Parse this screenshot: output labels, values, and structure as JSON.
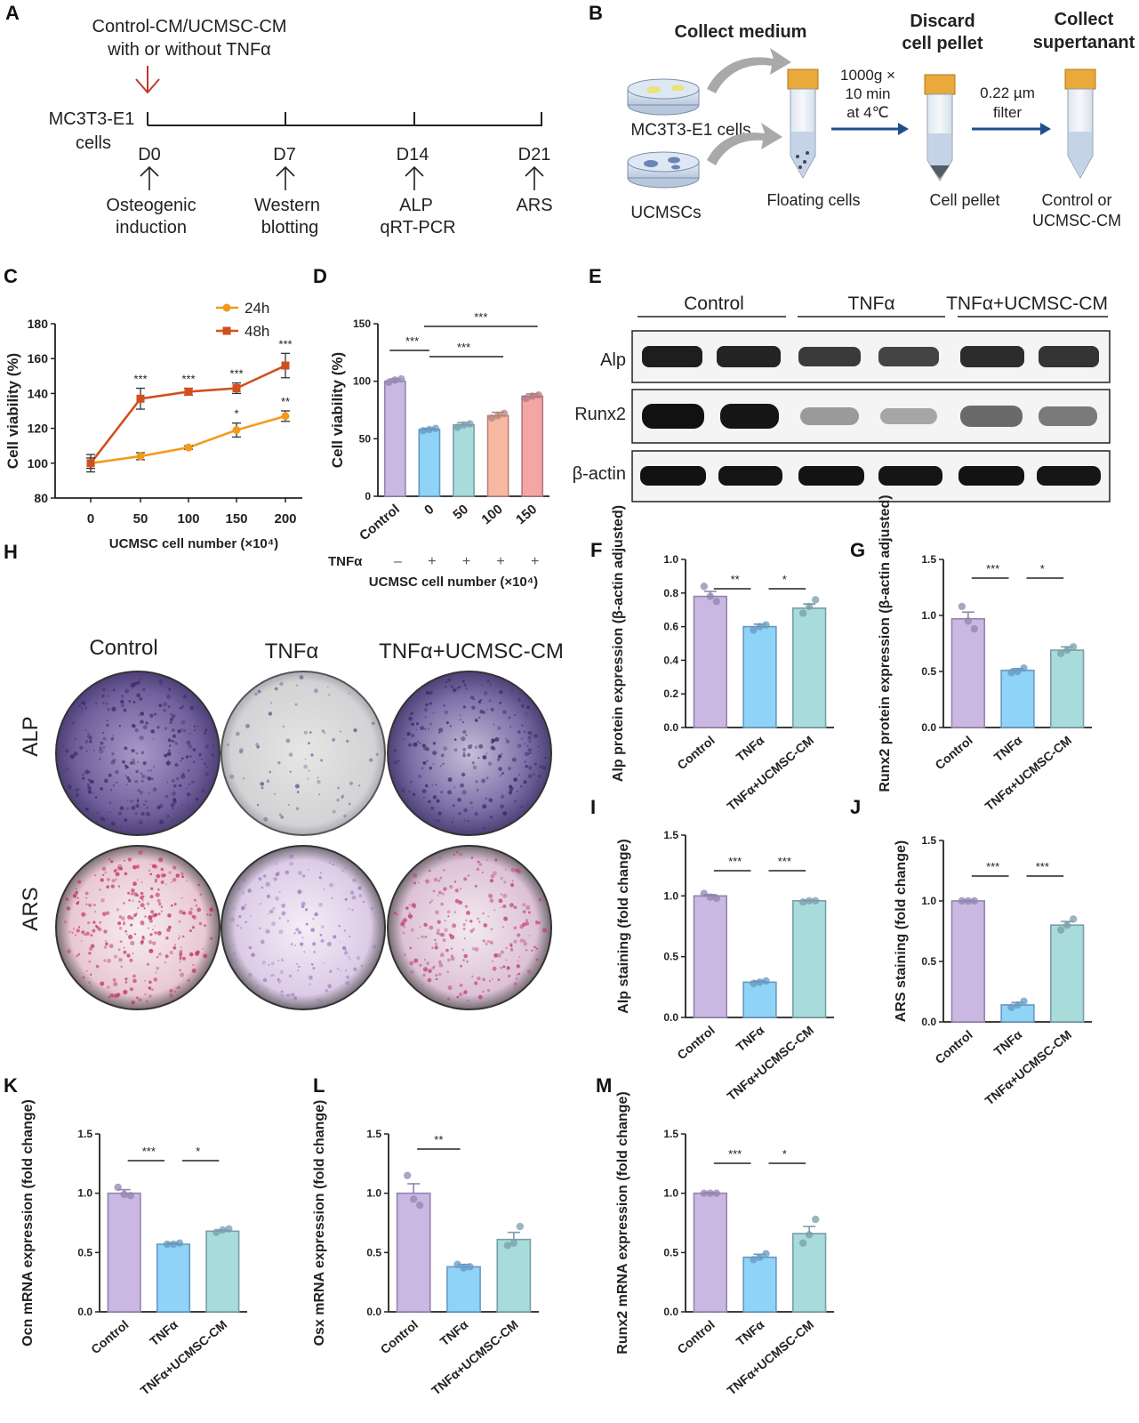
{
  "panel_letters": {
    "A": "A",
    "B": "B",
    "C": "C",
    "D": "D",
    "E": "E",
    "F": "F",
    "G": "G",
    "H": "H",
    "I": "I",
    "J": "J",
    "K": "K",
    "L": "L",
    "M": "M"
  },
  "panelA": {
    "treatment": [
      "Control-CM/UCMSC-CM",
      "with or without TNFα"
    ],
    "cell_line": [
      "MC3T3-E1",
      "cells"
    ],
    "days": [
      "D0",
      "D7",
      "D14",
      "D21"
    ],
    "events": [
      [
        "Osteogenic",
        "induction"
      ],
      [
        "Western",
        "blotting"
      ],
      [
        "ALP",
        "qRT-PCR"
      ],
      [
        "ARS"
      ]
    ]
  },
  "panelB": {
    "header1": "Collect medium",
    "header2": [
      "Discard",
      "cell pellet"
    ],
    "header3": [
      "Collect",
      "supertanant"
    ],
    "cells1": "MC3T3-E1 cells",
    "cells2": "UCMSCs",
    "spin": [
      "1000g ×",
      "10 min",
      "at 4℃"
    ],
    "filter": [
      "0.22 µm",
      "filter"
    ],
    "tube1_label": "Floating cells",
    "tube2_label": "Cell pellet",
    "tube3_label": [
      "Control or",
      "UCMSC-CM"
    ]
  },
  "panelE": {
    "groups": [
      "Control",
      "TNFα",
      "TNFα+UCMSC-CM"
    ],
    "rows": [
      "Alp",
      "Runx2",
      "β-actin"
    ]
  },
  "panelH": {
    "groups": [
      "Control",
      "TNFα",
      "TNFα+UCMSC-CM"
    ],
    "rows": [
      "ALP",
      "ARS"
    ]
  },
  "colors": {
    "control": "#cbb8e2",
    "tnf": "#8fd3f7",
    "cm": "#a8dcdb",
    "ucmsc50": "#a8dcdb",
    "ucmsc100": "#f7b9a2",
    "ucmsc150": "#f4a6a6",
    "line24": "#f39a1e",
    "line48": "#d1501e"
  },
  "chart_data": [
    {
      "id": "C",
      "type": "line",
      "x": [
        0,
        50,
        100,
        150,
        200
      ],
      "xlabel": "UCMSC cell number (×10⁴)",
      "ylabel": "Cell viability (%)",
      "ylim": [
        80,
        180
      ],
      "yticks": [
        "80",
        "100",
        "120",
        "140",
        "160",
        "180"
      ],
      "series": [
        {
          "name": "24h",
          "values": [
            100,
            104,
            109,
            119,
            127
          ],
          "err": [
            5,
            2,
            1,
            4,
            3
          ],
          "stars": [
            "",
            "",
            "",
            "*",
            "**"
          ]
        },
        {
          "name": "48h",
          "values": [
            100,
            137,
            141,
            143,
            156
          ],
          "err": [
            3,
            6,
            2,
            3,
            7
          ],
          "stars": [
            "",
            "***",
            "***",
            "***",
            "***"
          ]
        }
      ],
      "legend": "top-right"
    },
    {
      "id": "D",
      "type": "bar",
      "categories": [
        "Control",
        "0",
        "50",
        "100",
        "150"
      ],
      "values": [
        100,
        58,
        62,
        70,
        87
      ],
      "err": [
        2,
        1,
        2,
        3,
        2
      ],
      "points": [
        [
          99,
          101,
          102
        ],
        [
          57,
          58,
          59
        ],
        [
          60,
          62,
          63
        ],
        [
          68,
          70,
          72
        ],
        [
          85,
          87,
          88
        ]
      ],
      "xlabel": "UCMSC cell number (×10⁴)",
      "ylabel": "Cell viability (%)",
      "ylim": [
        0,
        150
      ],
      "yticks": [
        "0",
        "50",
        "100",
        "150"
      ],
      "row_label": "TNFα",
      "row_marks": [
        "–",
        "+",
        "+",
        "+",
        "+"
      ],
      "sig": [
        {
          "from": 0,
          "to": 1,
          "label": "***"
        },
        {
          "from": 1,
          "to": 3,
          "label": "***"
        },
        {
          "from": 1,
          "to": 4,
          "label": "***"
        }
      ]
    },
    {
      "id": "F",
      "type": "bar",
      "categories": [
        "Control",
        "TNFα",
        "TNFα+UCMSC-CM"
      ],
      "values": [
        0.78,
        0.6,
        0.71
      ],
      "err": [
        0.03,
        0.015,
        0.025
      ],
      "points": [
        [
          0.84,
          0.78,
          0.75
        ],
        [
          0.58,
          0.6,
          0.61
        ],
        [
          0.68,
          0.72,
          0.76
        ]
      ],
      "ylabel": "Alp protein expression (β-actin adjusted)",
      "ylim": [
        0,
        1.0
      ],
      "yticks": [
        "0.0",
        "0.2",
        "0.4",
        "0.6",
        "0.8",
        "1.0"
      ],
      "sig": [
        {
          "from": 0,
          "to": 1,
          "label": "**"
        },
        {
          "from": 1,
          "to": 2,
          "label": "*"
        }
      ]
    },
    {
      "id": "G",
      "type": "bar",
      "categories": [
        "Control",
        "TNFα",
        "TNFα+UCMSC-CM"
      ],
      "values": [
        0.97,
        0.51,
        0.69
      ],
      "err": [
        0.06,
        0.015,
        0.03
      ],
      "points": [
        [
          1.08,
          0.95,
          0.88
        ],
        [
          0.49,
          0.5,
          0.53
        ],
        [
          0.66,
          0.69,
          0.72
        ]
      ],
      "ylabel": "Runx2 protein expression (β-actin adjusted)",
      "ylim": [
        0,
        1.5
      ],
      "yticks": [
        "0.0",
        "0.5",
        "1.0",
        "1.5"
      ],
      "sig": [
        {
          "from": 0,
          "to": 1,
          "label": "***"
        },
        {
          "from": 1,
          "to": 2,
          "label": "*"
        }
      ]
    },
    {
      "id": "I",
      "type": "bar",
      "categories": [
        "Control",
        "TNFα",
        "TNFα+UCMSC-CM"
      ],
      "values": [
        1.0,
        0.29,
        0.96
      ],
      "err": [
        0.01,
        0.01,
        0.005
      ],
      "points": [
        [
          1.02,
          0.99,
          0.98
        ],
        [
          0.28,
          0.29,
          0.3
        ],
        [
          0.95,
          0.96,
          0.96
        ]
      ],
      "ylabel": "Alp staining (fold change)",
      "ylim": [
        0,
        1.5
      ],
      "yticks": [
        "0.0",
        "0.5",
        "1.0",
        "1.5"
      ],
      "sig": [
        {
          "from": 0,
          "to": 1,
          "label": "***"
        },
        {
          "from": 1,
          "to": 2,
          "label": "***"
        }
      ]
    },
    {
      "id": "J",
      "type": "bar",
      "categories": [
        "Control",
        "TNFα",
        "TNFα+UCMSC-CM"
      ],
      "values": [
        1.0,
        0.14,
        0.8
      ],
      "err": [
        0.005,
        0.02,
        0.03
      ],
      "points": [
        [
          1.0,
          1.0,
          1.0
        ],
        [
          0.12,
          0.14,
          0.17
        ],
        [
          0.76,
          0.8,
          0.85
        ]
      ],
      "ylabel": "ARS staining (fold change)",
      "ylim": [
        0,
        1.5
      ],
      "yticks": [
        "0.0",
        "0.5",
        "1.0",
        "1.5"
      ],
      "sig": [
        {
          "from": 0,
          "to": 1,
          "label": "***"
        },
        {
          "from": 1,
          "to": 2,
          "label": "***"
        }
      ]
    },
    {
      "id": "K",
      "type": "bar",
      "categories": [
        "Control",
        "TNFα",
        "TNFα+UCMSC-CM"
      ],
      "values": [
        1.0,
        0.57,
        0.68
      ],
      "err": [
        0.03,
        0.01,
        0.01
      ],
      "points": [
        [
          1.05,
          0.99,
          0.98
        ],
        [
          0.57,
          0.57,
          0.58
        ],
        [
          0.67,
          0.69,
          0.7
        ]
      ],
      "ylabel": "Ocn mRNA expression (fold change)",
      "ylim": [
        0,
        1.5
      ],
      "yticks": [
        "0.0",
        "0.5",
        "1.0",
        "1.5"
      ],
      "sig": [
        {
          "from": 0,
          "to": 1,
          "label": "***"
        },
        {
          "from": 1,
          "to": 2,
          "label": "*"
        }
      ]
    },
    {
      "id": "L",
      "type": "bar",
      "categories": [
        "Control",
        "TNFα",
        "TNFα+UCMSC-CM"
      ],
      "values": [
        1.0,
        0.38,
        0.61
      ],
      "err": [
        0.08,
        0.02,
        0.06
      ],
      "points": [
        [
          1.15,
          0.95,
          0.9
        ],
        [
          0.4,
          0.37,
          0.38
        ],
        [
          0.56,
          0.58,
          0.72
        ]
      ],
      "ylabel": "Osx mRNA expression (fold change)",
      "ylim": [
        0,
        1.5
      ],
      "yticks": [
        "0.0",
        "0.5",
        "1.0",
        "1.5"
      ],
      "sig": [
        {
          "from": 0,
          "to": 1,
          "label": "**"
        }
      ]
    },
    {
      "id": "M",
      "type": "bar",
      "categories": [
        "Control",
        "TNFα",
        "TNFα+UCMSC-CM"
      ],
      "values": [
        1.0,
        0.46,
        0.66
      ],
      "err": [
        0.005,
        0.025,
        0.06
      ],
      "points": [
        [
          1.0,
          1.0,
          1.0
        ],
        [
          0.44,
          0.46,
          0.49
        ],
        [
          0.58,
          0.65,
          0.78
        ]
      ],
      "ylabel": "Runx2 mRNA expression (fold change)",
      "ylim": [
        0,
        1.5
      ],
      "yticks": [
        "0.0",
        "0.5",
        "1.0",
        "1.5"
      ],
      "sig": [
        {
          "from": 0,
          "to": 1,
          "label": "***"
        },
        {
          "from": 1,
          "to": 2,
          "label": "*"
        }
      ]
    }
  ]
}
